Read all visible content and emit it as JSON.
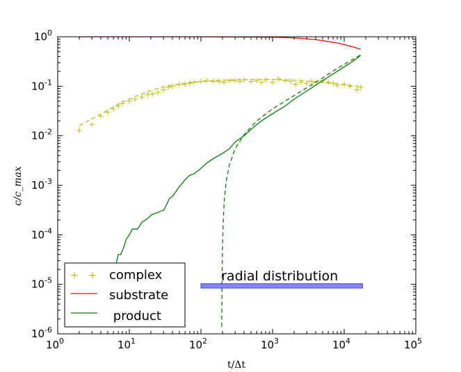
{
  "chart_data": {
    "type": "line",
    "xscale": "log",
    "yscale": "log",
    "xlim": [
      1,
      100000
    ],
    "ylim": [
      1e-06,
      1
    ],
    "xlabel": "t/Δt",
    "ylabel": "c/c_max",
    "x_ticks": [
      {
        "base": "10",
        "exp": "0"
      },
      {
        "base": "10",
        "exp": "1"
      },
      {
        "base": "10",
        "exp": "2"
      },
      {
        "base": "10",
        "exp": "3"
      },
      {
        "base": "10",
        "exp": "4"
      },
      {
        "base": "10",
        "exp": "5"
      }
    ],
    "y_ticks": [
      {
        "base": "10",
        "exp": "-6"
      },
      {
        "base": "10",
        "exp": "-5"
      },
      {
        "base": "10",
        "exp": "-4"
      },
      {
        "base": "10",
        "exp": "-3"
      },
      {
        "base": "10",
        "exp": "-2"
      },
      {
        "base": "10",
        "exp": "-1"
      },
      {
        "base": "10",
        "exp": "0"
      }
    ],
    "legend": {
      "position": "lower-left",
      "entries": [
        {
          "label": "complex",
          "style": "markers",
          "color": "#bfbf00"
        },
        {
          "label": "substrate",
          "style": "solid",
          "color": "#ff0000"
        },
        {
          "label": " product",
          "style": "solid",
          "color": "#008000"
        }
      ]
    },
    "annotation": {
      "text": "radial distribution",
      "band": {
        "x_from": 100,
        "x_to": 18000,
        "y_from": 8.4e-06,
        "y_to": 1.03e-05,
        "color": "#6f6fff"
      }
    },
    "series": [
      {
        "name": "complex",
        "style": "markers",
        "color": "#bfbf00",
        "x": [
          2,
          3,
          4,
          5,
          6,
          7,
          8,
          10,
          12,
          15,
          18,
          21,
          25,
          30,
          35,
          40,
          50,
          60,
          70,
          80,
          100,
          120,
          150,
          180,
          210,
          250,
          300,
          350,
          400,
          500,
          600,
          700,
          800,
          1000,
          1200,
          1500,
          1800,
          2100,
          2500,
          3000,
          3500,
          4000,
          5000,
          6000,
          7000,
          8000,
          10000,
          12000,
          15000,
          17000
        ],
        "y": [
          0.0128,
          0.017,
          0.025,
          0.03,
          0.035,
          0.04,
          0.045,
          0.05,
          0.055,
          0.06,
          0.068,
          0.07,
          0.075,
          0.085,
          0.095,
          0.1,
          0.108,
          0.11,
          0.115,
          0.12,
          0.125,
          0.13,
          0.125,
          0.125,
          0.12,
          0.13,
          0.13,
          0.125,
          0.135,
          0.125,
          0.13,
          0.12,
          0.135,
          0.12,
          0.14,
          0.13,
          0.125,
          0.11,
          0.12,
          0.115,
          0.125,
          0.12,
          0.13,
          0.12,
          0.115,
          0.105,
          0.11,
          0.1,
          0.085,
          0.095
        ]
      },
      {
        "name": "complex",
        "style": "dashed",
        "color": "#bfbf00",
        "x": [
          2,
          3,
          5,
          8,
          12,
          20,
          30,
          50,
          80,
          150,
          300,
          600,
          1000,
          2000,
          4000,
          8000,
          17000
        ],
        "y": [
          0.016,
          0.022,
          0.033,
          0.048,
          0.062,
          0.082,
          0.098,
          0.112,
          0.122,
          0.13,
          0.136,
          0.138,
          0.137,
          0.133,
          0.124,
          0.112,
          0.098
        ]
      },
      {
        "name": "substrate",
        "style": "solid",
        "color": "#ff0000",
        "x": [
          2,
          10,
          100,
          500,
          1000,
          2000,
          4000,
          8000,
          12000,
          17000
        ],
        "y": [
          1,
          1,
          0.999,
          0.99,
          0.98,
          0.95,
          0.88,
          0.75,
          0.65,
          0.56
        ]
      },
      {
        "name": "product",
        "style": "solid",
        "color": "#008000",
        "x": [
          4.9,
          5.2,
          5.8,
          6.5,
          7,
          7.6,
          8.5,
          9,
          10,
          11,
          12,
          13,
          15,
          17,
          19,
          21,
          23,
          25,
          27,
          30,
          33,
          36,
          40,
          45,
          50,
          55,
          60,
          70,
          80,
          100,
          120,
          150,
          200,
          250,
          300,
          400,
          500,
          700,
          1000,
          1500,
          2000,
          3000,
          5000,
          8000,
          12000,
          17000
        ],
        "y": [
          1.4e-06,
          3e-06,
          9e-06,
          2.5e-05,
          4e-05,
          4e-05,
          6e-05,
          8e-05,
          0.0001,
          0.00013,
          0.00013,
          0.00013,
          0.00018,
          0.0002,
          0.00023,
          0.00026,
          0.00027,
          0.00028,
          0.0003,
          0.00031,
          0.0004,
          0.00053,
          0.0006,
          0.00075,
          0.00095,
          0.0011,
          0.0013,
          0.0016,
          0.0017,
          0.0022,
          0.0028,
          0.0035,
          0.0044,
          0.0055,
          0.0075,
          0.01,
          0.0135,
          0.02,
          0.028,
          0.04,
          0.055,
          0.08,
          0.13,
          0.2,
          0.29,
          0.42
        ]
      },
      {
        "name": "product",
        "style": "dashed",
        "color": "#008000",
        "x": [
          195,
          197,
          200,
          205,
          212,
          225,
          250,
          300,
          400,
          600,
          1000,
          2000,
          4000,
          8000,
          17000
        ],
        "y": [
          1.4e-06,
          1e-05,
          6e-05,
          0.0002,
          0.0005,
          0.0012,
          0.0026,
          0.0055,
          0.0105,
          0.02,
          0.035,
          0.065,
          0.12,
          0.23,
          0.43
        ]
      }
    ]
  }
}
